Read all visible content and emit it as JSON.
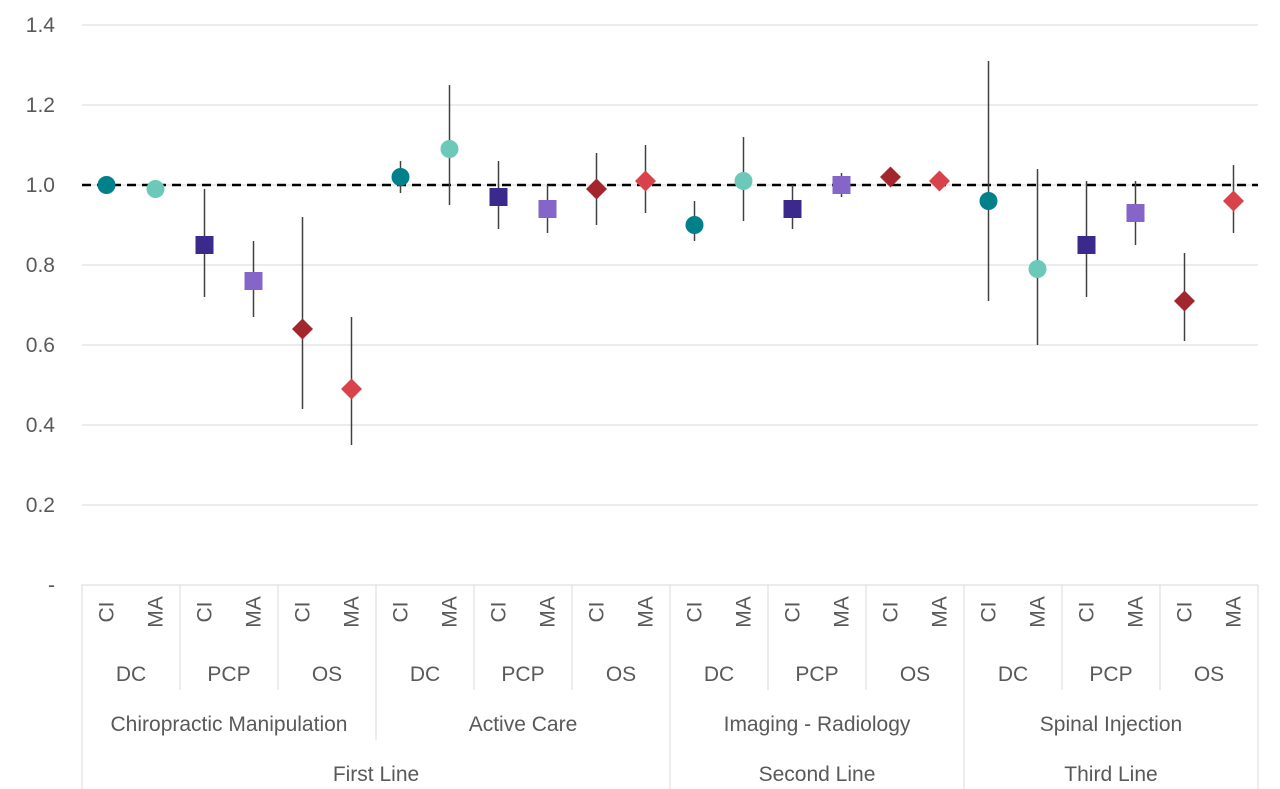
{
  "chart_data": {
    "type": "scatter",
    "title": "",
    "xlabel": "",
    "ylabel": "",
    "ylim": [
      0,
      1.4
    ],
    "y_ticks": [
      {
        "value": 0,
        "label": "-"
      },
      {
        "value": 0.2,
        "label": "0.2"
      },
      {
        "value": 0.4,
        "label": "0.4"
      },
      {
        "value": 0.6,
        "label": "0.6"
      },
      {
        "value": 0.8,
        "label": "0.8"
      },
      {
        "value": 1.0,
        "label": "1.0"
      },
      {
        "value": 1.2,
        "label": "1.2"
      },
      {
        "value": 1.4,
        "label": "1.4"
      }
    ],
    "grid": true,
    "reference_line": 1.0,
    "lines": [
      {
        "label": "First Line",
        "groups": [
          {
            "label": "Chiropractic Manipulation",
            "providers": [
              {
                "label": "DC",
                "points": [
                  {
                    "label": "CI",
                    "value": 1.0,
                    "lo": 1.0,
                    "hi": 1.0
                  },
                  {
                    "label": "MA",
                    "value": 0.99,
                    "lo": 0.99,
                    "hi": 0.99
                  }
                ]
              },
              {
                "label": "PCP",
                "points": [
                  {
                    "label": "CI",
                    "value": 0.85,
                    "lo": 0.72,
                    "hi": 0.99
                  },
                  {
                    "label": "MA",
                    "value": 0.76,
                    "lo": 0.67,
                    "hi": 0.86
                  }
                ]
              },
              {
                "label": "OS",
                "points": [
                  {
                    "label": "CI",
                    "value": 0.64,
                    "lo": 0.44,
                    "hi": 0.92
                  },
                  {
                    "label": "MA",
                    "value": 0.49,
                    "lo": 0.35,
                    "hi": 0.67
                  }
                ]
              }
            ]
          },
          {
            "label": "Active Care",
            "providers": [
              {
                "label": "DC",
                "points": [
                  {
                    "label": "CI",
                    "value": 1.02,
                    "lo": 0.98,
                    "hi": 1.06
                  },
                  {
                    "label": "MA",
                    "value": 1.09,
                    "lo": 0.95,
                    "hi": 1.25
                  }
                ]
              },
              {
                "label": "PCP",
                "points": [
                  {
                    "label": "CI",
                    "value": 0.97,
                    "lo": 0.89,
                    "hi": 1.06
                  },
                  {
                    "label": "MA",
                    "value": 0.94,
                    "lo": 0.88,
                    "hi": 1.0
                  }
                ]
              },
              {
                "label": "OS",
                "points": [
                  {
                    "label": "CI",
                    "value": 0.99,
                    "lo": 0.9,
                    "hi": 1.08
                  },
                  {
                    "label": "MA",
                    "value": 1.01,
                    "lo": 0.93,
                    "hi": 1.1
                  }
                ]
              }
            ]
          }
        ]
      },
      {
        "label": "Second Line",
        "groups": [
          {
            "label": "Imaging - Radiology",
            "providers": [
              {
                "label": "DC",
                "points": [
                  {
                    "label": "CI",
                    "value": 0.9,
                    "lo": 0.86,
                    "hi": 0.96
                  },
                  {
                    "label": "MA",
                    "value": 1.01,
                    "lo": 0.91,
                    "hi": 1.12
                  }
                ]
              },
              {
                "label": "PCP",
                "points": [
                  {
                    "label": "CI",
                    "value": 0.94,
                    "lo": 0.89,
                    "hi": 1.0
                  },
                  {
                    "label": "MA",
                    "value": 1.0,
                    "lo": 0.97,
                    "hi": 1.03
                  }
                ]
              },
              {
                "label": "OS",
                "points": [
                  {
                    "label": "CI",
                    "value": 1.02,
                    "lo": 1.0,
                    "hi": 1.04
                  },
                  {
                    "label": "MA",
                    "value": 1.01,
                    "lo": 1.0,
                    "hi": 1.02
                  }
                ]
              }
            ]
          }
        ]
      },
      {
        "label": "Third Line",
        "groups": [
          {
            "label": "Spinal Injection",
            "providers": [
              {
                "label": "DC",
                "points": [
                  {
                    "label": "CI",
                    "value": 0.96,
                    "lo": 0.71,
                    "hi": 1.31
                  },
                  {
                    "label": "MA",
                    "value": 0.79,
                    "lo": 0.6,
                    "hi": 1.04
                  }
                ]
              },
              {
                "label": "PCP",
                "points": [
                  {
                    "label": "CI",
                    "value": 0.85,
                    "lo": 0.72,
                    "hi": 1.01
                  },
                  {
                    "label": "MA",
                    "value": 0.93,
                    "lo": 0.85,
                    "hi": 1.01
                  }
                ]
              },
              {
                "label": "OS",
                "points": [
                  {
                    "label": "CI",
                    "value": 0.71,
                    "lo": 0.61,
                    "hi": 0.83
                  },
                  {
                    "label": "MA",
                    "value": 0.96,
                    "lo": 0.88,
                    "hi": 1.05
                  }
                ]
              }
            ]
          }
        ]
      }
    ],
    "marker_styles": {
      "DC": {
        "shape": "circle"
      },
      "PCP": {
        "shape": "square"
      },
      "OS": {
        "shape": "diamond"
      }
    },
    "colors": {
      "DC-CI": "#00808a",
      "DC-MA": "#6cc8b8",
      "PCP-CI": "#3b2a8c",
      "PCP-MA": "#8566c8",
      "OS-CI": "#a3262e",
      "OS-MA": "#d9424a",
      "gridline": "#d9d9d9",
      "error_bar": "#404040",
      "reference_line": "#000000"
    }
  }
}
